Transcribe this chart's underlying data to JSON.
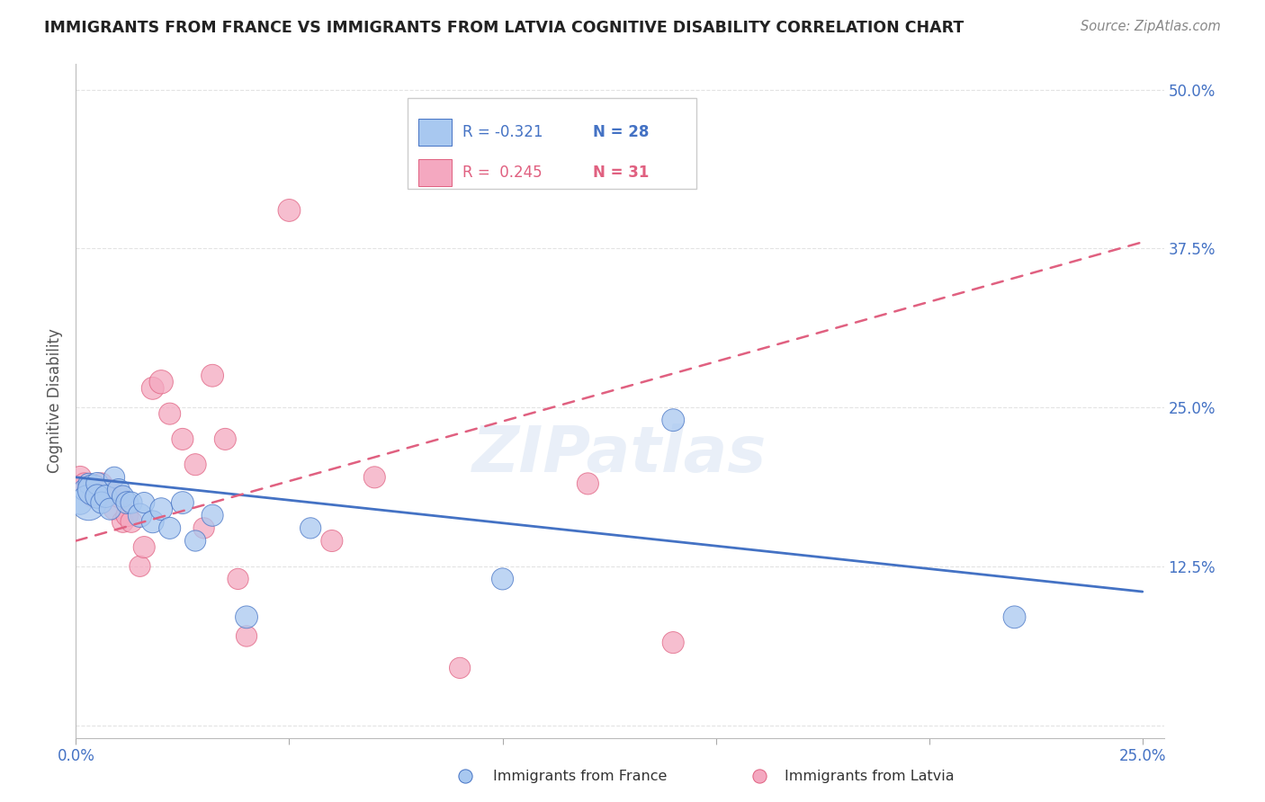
{
  "title": "IMMIGRANTS FROM FRANCE VS IMMIGRANTS FROM LATVIA COGNITIVE DISABILITY CORRELATION CHART",
  "source": "Source: ZipAtlas.com",
  "ylabel": "Cognitive Disability",
  "xlim": [
    0.0,
    0.255
  ],
  "ylim": [
    -0.01,
    0.52
  ],
  "france_color": "#A8C8F0",
  "latvia_color": "#F4A8C0",
  "france_line_color": "#4472C4",
  "latvia_line_color": "#E06080",
  "R_france": -0.321,
  "N_france": 28,
  "R_latvia": 0.245,
  "N_latvia": 31,
  "france_scatter_x": [
    0.001,
    0.002,
    0.003,
    0.003,
    0.004,
    0.005,
    0.005,
    0.006,
    0.007,
    0.008,
    0.009,
    0.01,
    0.011,
    0.012,
    0.013,
    0.015,
    0.016,
    0.018,
    0.02,
    0.022,
    0.025,
    0.028,
    0.032,
    0.04,
    0.055,
    0.1,
    0.14,
    0.22
  ],
  "france_scatter_y": [
    0.175,
    0.185,
    0.19,
    0.175,
    0.185,
    0.19,
    0.18,
    0.175,
    0.18,
    0.17,
    0.195,
    0.185,
    0.18,
    0.175,
    0.175,
    0.165,
    0.175,
    0.16,
    0.17,
    0.155,
    0.175,
    0.145,
    0.165,
    0.085,
    0.155,
    0.115,
    0.24,
    0.085
  ],
  "france_scatter_size": [
    18,
    15,
    14,
    40,
    30,
    16,
    18,
    15,
    16,
    15,
    14,
    16,
    15,
    16,
    15,
    18,
    14,
    16,
    16,
    15,
    16,
    14,
    15,
    16,
    14,
    15,
    16,
    16
  ],
  "latvia_scatter_x": [
    0.001,
    0.002,
    0.003,
    0.004,
    0.005,
    0.006,
    0.007,
    0.008,
    0.009,
    0.01,
    0.011,
    0.012,
    0.013,
    0.015,
    0.016,
    0.018,
    0.02,
    0.022,
    0.025,
    0.028,
    0.03,
    0.032,
    0.035,
    0.038,
    0.04,
    0.05,
    0.06,
    0.07,
    0.09,
    0.12,
    0.14
  ],
  "latvia_scatter_y": [
    0.195,
    0.19,
    0.185,
    0.18,
    0.185,
    0.19,
    0.185,
    0.185,
    0.17,
    0.18,
    0.16,
    0.165,
    0.16,
    0.125,
    0.14,
    0.265,
    0.27,
    0.245,
    0.225,
    0.205,
    0.155,
    0.275,
    0.225,
    0.115,
    0.07,
    0.405,
    0.145,
    0.195,
    0.045,
    0.19,
    0.065
  ],
  "latvia_scatter_size": [
    16,
    15,
    14,
    16,
    18,
    15,
    16,
    14,
    15,
    16,
    15,
    16,
    15,
    14,
    15,
    16,
    18,
    15,
    15,
    15,
    14,
    16,
    15,
    14,
    14,
    16,
    15,
    15,
    14,
    15,
    15
  ],
  "watermark": "ZIPatlas",
  "background_color": "#FFFFFF",
  "grid_color": "#DDDDDD",
  "france_trend_x": [
    0.0,
    0.25
  ],
  "france_trend_y": [
    0.195,
    0.105
  ],
  "latvia_trend_x": [
    0.0,
    0.25
  ],
  "latvia_trend_y": [
    0.145,
    0.38
  ]
}
